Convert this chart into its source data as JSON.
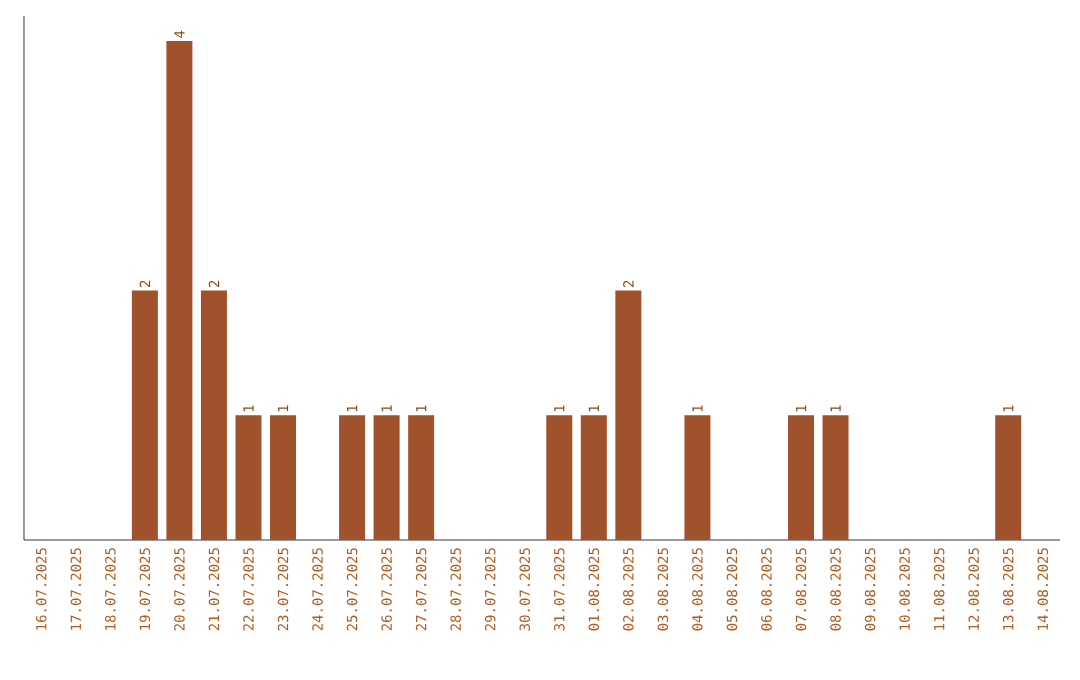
{
  "chart_data": {
    "type": "bar",
    "categories": [
      "16.07.2025",
      "17.07.2025",
      "18.07.2025",
      "19.07.2025",
      "20.07.2025",
      "21.07.2025",
      "22.07.2025",
      "23.07.2025",
      "24.07.2025",
      "25.07.2025",
      "26.07.2025",
      "27.07.2025",
      "28.07.2025",
      "29.07.2025",
      "30.07.2025",
      "31.07.2025",
      "01.08.2025",
      "02.08.2025",
      "03.08.2025",
      "04.08.2025",
      "05.08.2025",
      "06.08.2025",
      "07.08.2025",
      "08.08.2025",
      "09.08.2025",
      "10.08.2025",
      "11.08.2025",
      "12.08.2025",
      "13.08.2025",
      "14.08.2025"
    ],
    "values": [
      0,
      0,
      0,
      2,
      4,
      2,
      1,
      1,
      0,
      1,
      1,
      1,
      0,
      0,
      0,
      1,
      1,
      2,
      0,
      1,
      0,
      0,
      1,
      1,
      0,
      0,
      0,
      0,
      1,
      0
    ],
    "value_labels": [
      null,
      null,
      null,
      "2",
      "4",
      "2",
      "1",
      "1",
      null,
      "1",
      "1",
      "1",
      null,
      null,
      null,
      "1",
      "1",
      "2",
      null,
      "1",
      null,
      null,
      "1",
      "1",
      null,
      null,
      null,
      null,
      "1",
      null
    ],
    "color": "#a0522d",
    "ylim": [
      0,
      4.2
    ],
    "tick_labels": "x"
  }
}
